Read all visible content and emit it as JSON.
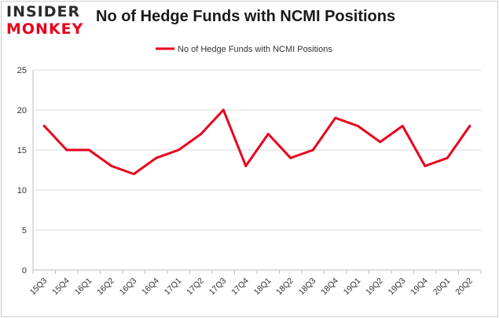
{
  "logo": {
    "line1": "INSIDER",
    "line2": "MONKEY"
  },
  "colors": {
    "series": "#e8001c",
    "grid": "#d9d9d9",
    "frame": "#cccccc"
  },
  "chart_data": {
    "type": "line",
    "title": "No of Hedge Funds with NCMI Positions",
    "xlabel": "",
    "ylabel": "",
    "categories": [
      "15Q3",
      "15Q4",
      "16Q1",
      "16Q2",
      "16Q3",
      "16Q4",
      "17Q1",
      "17Q2",
      "17Q3",
      "17Q4",
      "18Q1",
      "18Q2",
      "18Q3",
      "18Q4",
      "19Q1",
      "19Q2",
      "19Q3",
      "19Q4",
      "20Q1",
      "20Q2"
    ],
    "series": [
      {
        "name": "No of Hedge Funds with NCMI Positions",
        "values": [
          18,
          15,
          15,
          13,
          12,
          14,
          15,
          17,
          20,
          13,
          17,
          14,
          15,
          19,
          18,
          16,
          18,
          13,
          14,
          18
        ]
      }
    ],
    "ylim": [
      0,
      25
    ],
    "yticks": [
      0,
      5,
      10,
      15,
      20,
      25
    ],
    "grid": "horizontal",
    "legend": "top-center"
  }
}
